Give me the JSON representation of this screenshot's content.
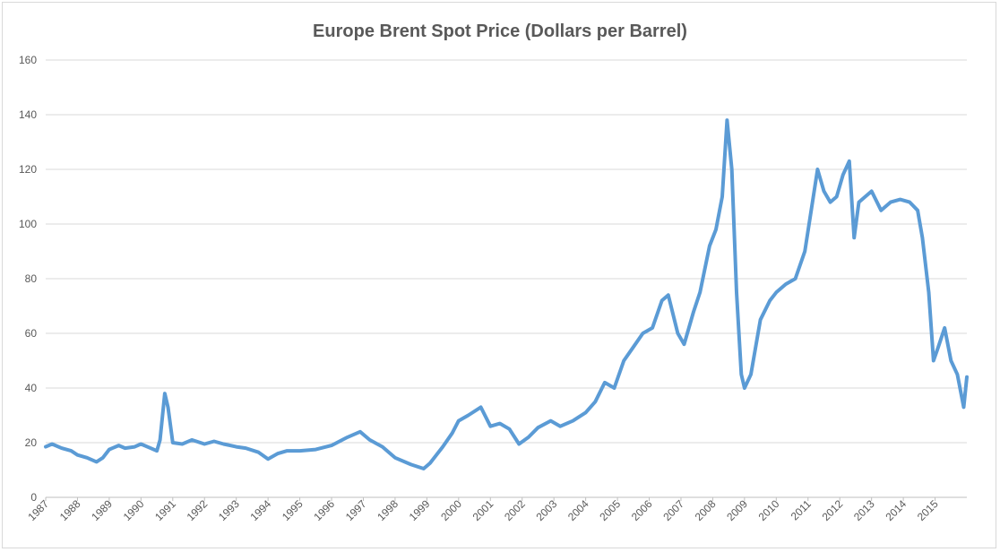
{
  "chart_data": {
    "type": "line",
    "title": "Europe Brent Spot Price (Dollars per Barrel)",
    "xlabel": "",
    "ylabel": "",
    "xlim": [
      1987.0,
      2016.0
    ],
    "ylim": [
      0,
      160
    ],
    "y_ticks": [
      0,
      20,
      40,
      60,
      80,
      100,
      120,
      140,
      160
    ],
    "x_tick_labels": [
      "1987",
      "1988",
      "1989",
      "1990",
      "1991",
      "1992",
      "1993",
      "1994",
      "1995",
      "1996",
      "1997",
      "1998",
      "1999",
      "2000",
      "2001",
      "2002",
      "2003",
      "2004",
      "2005",
      "2006",
      "2007",
      "2008",
      "2009",
      "2010",
      "2011",
      "2012",
      "2013",
      "2014",
      "2015"
    ],
    "grid": true,
    "legend": "none",
    "series_color": "#5b9bd5",
    "series": [
      {
        "x": [
          1987.0,
          1987.2,
          1987.5,
          1987.8,
          1988.0,
          1988.3,
          1988.6,
          1988.8,
          1989.0,
          1989.3,
          1989.5,
          1989.8,
          1990.0,
          1990.3,
          1990.5,
          1990.6,
          1990.75,
          1990.85,
          1991.0,
          1991.3,
          1991.6,
          1992.0,
          1992.3,
          1992.6,
          1993.0,
          1993.3,
          1993.7,
          1994.0,
          1994.3,
          1994.6,
          1995.0,
          1995.5,
          1996.0,
          1996.5,
          1996.9,
          1997.2,
          1997.6,
          1998.0,
          1998.5,
          1998.9,
          1999.1,
          1999.5,
          1999.8,
          2000.0,
          2000.3,
          2000.7,
          2001.0,
          2001.3,
          2001.6,
          2001.9,
          2002.2,
          2002.5,
          2002.9,
          2003.2,
          2003.6,
          2004.0,
          2004.3,
          2004.6,
          2004.9,
          2005.2,
          2005.5,
          2005.8,
          2006.1,
          2006.4,
          2006.6,
          2006.9,
          2007.1,
          2007.4,
          2007.6,
          2007.9,
          2008.1,
          2008.3,
          2008.45,
          2008.6,
          2008.75,
          2008.9,
          2009.0,
          2009.2,
          2009.5,
          2009.8,
          2010.0,
          2010.3,
          2010.6,
          2010.9,
          2011.1,
          2011.3,
          2011.5,
          2011.7,
          2011.9,
          2012.1,
          2012.3,
          2012.45,
          2012.6,
          2012.8,
          2013.0,
          2013.3,
          2013.6,
          2013.9,
          2014.2,
          2014.45,
          2014.6,
          2014.8,
          2014.95,
          2015.1,
          2015.3,
          2015.5,
          2015.7,
          2015.9,
          2016.0
        ],
        "values": [
          18.5,
          19.5,
          18.0,
          17.0,
          15.5,
          14.5,
          13.0,
          14.5,
          17.5,
          19.0,
          18.0,
          18.5,
          19.5,
          18.0,
          17.0,
          21.0,
          38.0,
          33.0,
          20.0,
          19.5,
          21.0,
          19.5,
          20.5,
          19.5,
          18.5,
          18.0,
          16.5,
          14.0,
          16.0,
          17.0,
          17.0,
          17.5,
          19.0,
          22.0,
          24.0,
          21.0,
          18.5,
          14.5,
          12.0,
          10.5,
          12.5,
          18.5,
          23.5,
          28.0,
          30.0,
          33.0,
          26.0,
          27.0,
          25.0,
          19.5,
          22.0,
          25.5,
          28.0,
          26.0,
          28.0,
          31.0,
          35.0,
          42.0,
          40.0,
          50.0,
          55.0,
          60.0,
          62.0,
          72.0,
          74.0,
          60.0,
          56.0,
          68.0,
          75.0,
          92.0,
          98.0,
          110.0,
          138.0,
          120.0,
          75.0,
          45.0,
          40.0,
          45.0,
          65.0,
          72.0,
          75.0,
          78.0,
          80.0,
          90.0,
          105.0,
          120.0,
          112.0,
          108.0,
          110.0,
          118.0,
          123.0,
          95.0,
          108.0,
          110.0,
          112.0,
          105.0,
          108.0,
          109.0,
          108.0,
          105.0,
          95.0,
          75.0,
          50.0,
          55.0,
          62.0,
          50.0,
          45.0,
          33.0,
          44.0
        ]
      }
    ]
  }
}
